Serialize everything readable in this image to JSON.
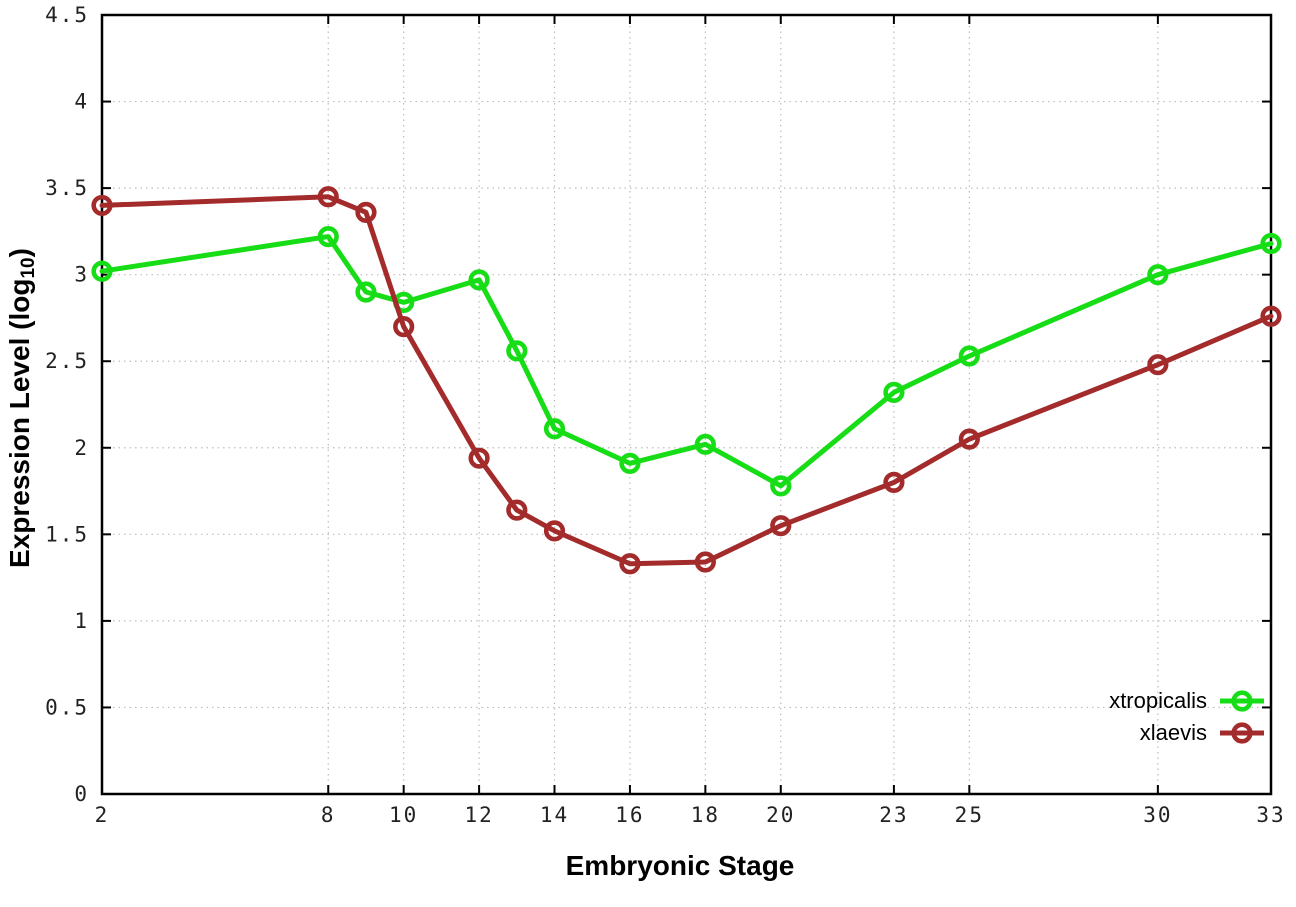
{
  "figure": {
    "background": "#ffffff",
    "ylabel_prefix": "Expression Level (log",
    "ylabel_sub": "10",
    "ylabel_suffix": ")"
  },
  "chart_data": {
    "type": "line",
    "title": "",
    "xlabel": "Embryonic Stage",
    "ylabel": "Expression Level (log10)",
    "xlim": [
      2,
      33
    ],
    "ylim": [
      0,
      4.5
    ],
    "grid": true,
    "legend_position": "inside-bottom-right",
    "xticks": [
      "2",
      "8",
      "10",
      "12",
      "14",
      "16",
      "18",
      "20",
      "23",
      "25",
      "30",
      "33"
    ],
    "yticks": [
      "0",
      "0.5",
      "1",
      "1.5",
      "2",
      "2.5",
      "3",
      "3.5",
      "4",
      "4.5"
    ],
    "x": [
      2,
      8,
      9,
      10,
      12,
      13,
      14,
      16,
      18,
      20,
      23,
      25,
      30,
      33
    ],
    "series": [
      {
        "name": "xtropicalis",
        "color": "#16dd16",
        "values": [
          3.02,
          3.22,
          2.9,
          2.84,
          2.97,
          2.56,
          2.11,
          1.91,
          2.02,
          1.78,
          2.32,
          2.53,
          3.0,
          3.18
        ]
      },
      {
        "name": "xlaevis",
        "color": "#a32b2b",
        "values": [
          3.4,
          3.45,
          3.36,
          2.7,
          1.94,
          1.64,
          1.52,
          1.33,
          1.34,
          1.55,
          1.8,
          2.05,
          2.48,
          2.76
        ]
      }
    ],
    "colors": {
      "grid": "#bdbdbd",
      "border": "#000000",
      "tick_label": "#222222"
    }
  }
}
